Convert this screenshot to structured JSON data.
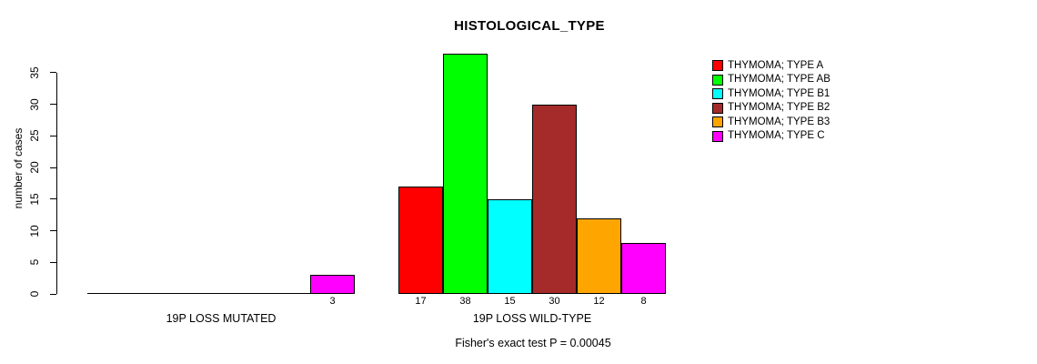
{
  "chart_data": {
    "type": "bar",
    "title": "HISTOLOGICAL_TYPE",
    "xlabel": "",
    "ylabel": "number of cases",
    "ylim": [
      0,
      38
    ],
    "yticks": [
      0,
      5,
      10,
      15,
      20,
      25,
      30,
      35
    ],
    "grid": false,
    "legend_position": "right",
    "show_bar_value_labels": true,
    "categories": [
      "19P LOSS MUTATED",
      "19P LOSS WILD-TYPE"
    ],
    "series": [
      {
        "name": "THYMOMA; TYPE A",
        "color": "#FF0000",
        "values": [
          0,
          17
        ]
      },
      {
        "name": "THYMOMA; TYPE AB",
        "color": "#00FF00",
        "values": [
          0,
          38
        ]
      },
      {
        "name": "THYMOMA; TYPE B1",
        "color": "#00FFFF",
        "values": [
          0,
          15
        ]
      },
      {
        "name": "THYMOMA; TYPE B2",
        "color": "#A52A2A",
        "values": [
          0,
          30
        ]
      },
      {
        "name": "THYMOMA; TYPE B3",
        "color": "#FFA500",
        "values": [
          0,
          12
        ]
      },
      {
        "name": "THYMOMA; TYPE C",
        "color": "#FF00FF",
        "values": [
          3,
          8
        ]
      }
    ],
    "annotation": "Fisher's exact test P = 0.00045"
  }
}
